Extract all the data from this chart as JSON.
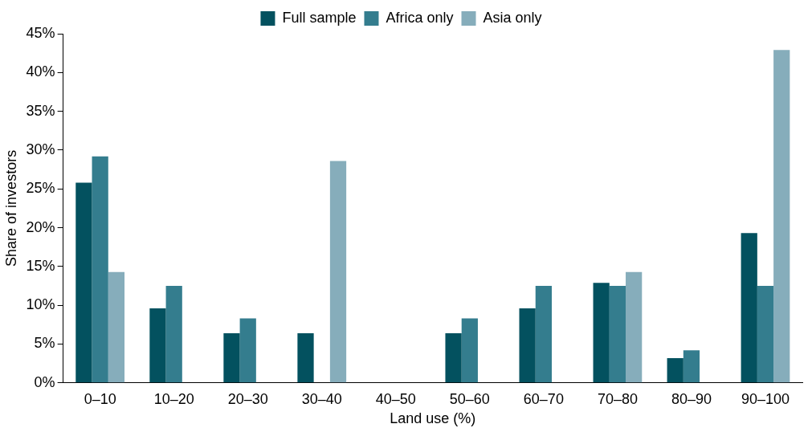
{
  "chart_data": {
    "type": "bar",
    "xlabel": "Land use (%)",
    "ylabel": "Share of investors",
    "categories": [
      "0–10",
      "10–20",
      "20–30",
      "30–40",
      "40–50",
      "50–60",
      "60–70",
      "70–80",
      "80–90",
      "90–100"
    ],
    "series": [
      {
        "name": "Full sample",
        "color": "#03515f",
        "values": [
          25.8,
          9.6,
          6.4,
          6.4,
          0,
          6.4,
          9.6,
          12.9,
          3.2,
          19.3
        ]
      },
      {
        "name": "Africa only",
        "color": "#347d8e",
        "values": [
          29.2,
          12.5,
          8.3,
          0,
          0,
          8.3,
          12.5,
          12.5,
          4.2,
          12.5
        ]
      },
      {
        "name": "Asia only",
        "color": "#86adbb",
        "values": [
          14.3,
          0,
          0,
          28.6,
          0,
          0,
          0,
          14.3,
          0,
          42.9
        ]
      }
    ],
    "ylim": [
      0,
      45
    ],
    "yticks": [
      {
        "value": 0,
        "label": "0%"
      },
      {
        "value": 5,
        "label": "5%"
      },
      {
        "value": 10,
        "label": "10%"
      },
      {
        "value": 15,
        "label": "15%"
      },
      {
        "value": 20,
        "label": "20%"
      },
      {
        "value": 25,
        "label": "25%"
      },
      {
        "value": 30,
        "label": "30%"
      },
      {
        "value": 35,
        "label": "35%"
      },
      {
        "value": 40,
        "label": "40%"
      },
      {
        "value": 45,
        "label": "45%"
      }
    ],
    "grid": false,
    "legend": "top"
  }
}
